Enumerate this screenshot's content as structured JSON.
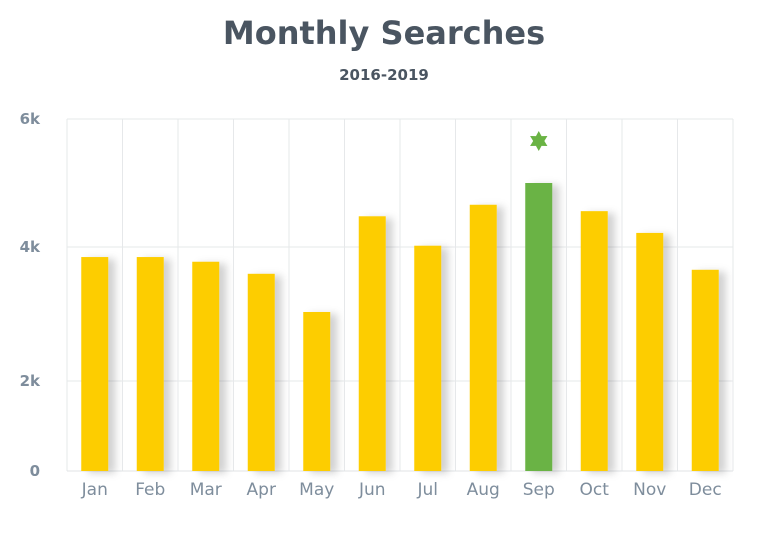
{
  "chart_data": {
    "type": "bar",
    "title": "Monthly Searches",
    "subtitle": "2016-2019",
    "categories": [
      "Jan",
      "Feb",
      "Mar",
      "Apr",
      "May",
      "Jun",
      "Jul",
      "Aug",
      "Sep",
      "Oct",
      "Nov",
      "Dec"
    ],
    "values": [
      3850,
      3850,
      3780,
      3600,
      3030,
      4480,
      4020,
      4660,
      5000,
      4560,
      4220,
      3660
    ],
    "ylim": [
      0,
      6000
    ],
    "y_ticks": [
      {
        "value": 0,
        "label": "0"
      },
      {
        "value": 2000,
        "label": "2k"
      },
      {
        "value": 4000,
        "label": "4k"
      },
      {
        "value": 6000,
        "label": "6k"
      }
    ],
    "highlight_category": "Sep",
    "highlight_marker": "star",
    "colors": {
      "bar": "#fdcd00",
      "highlight": "#6ab344",
      "grid": "#e6e8ea"
    },
    "grid": true,
    "xlabel": "",
    "ylabel": ""
  }
}
